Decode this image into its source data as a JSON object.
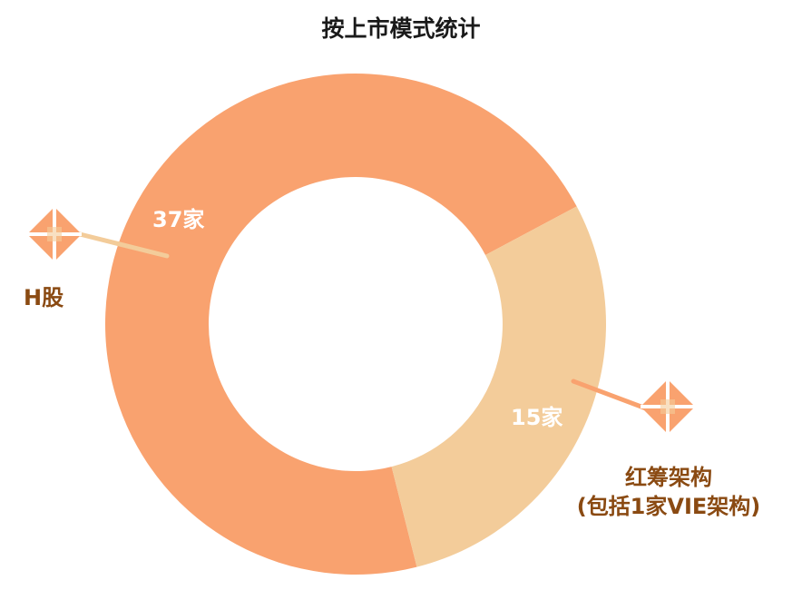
{
  "title": "按上市模式统计",
  "chart_data": {
    "type": "pie",
    "donut": true,
    "title": "按上市模式统计",
    "slices": [
      {
        "label": "H股",
        "value": 37,
        "value_label": "37家",
        "color": "#f9a26f"
      },
      {
        "label": "红筹架构\n(包括1家VIE架构)",
        "value": 15,
        "value_label": "15家",
        "color": "#f3cc9a"
      }
    ],
    "legend_lines": {
      "red_chip_line1": "红筹架构",
      "red_chip_line2": "(包括1家VIE架构)"
    },
    "colors": {
      "h_share": "#f9a26f",
      "red_chip": "#f3cc9a",
      "label_text": "#8a4a12",
      "value_text": "#ffffff"
    }
  }
}
